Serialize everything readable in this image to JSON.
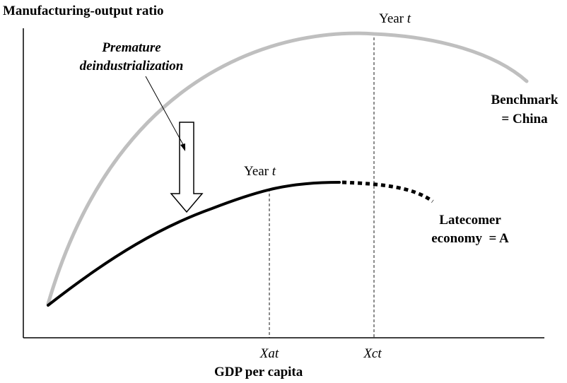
{
  "diagram": {
    "y_axis_title": "Manufacturing-output ratio",
    "x_axis_title": "GDP per capita",
    "annotation": {
      "line1": "Premature",
      "line2": "deindustrialization"
    },
    "benchmark": {
      "line1": "Benchmark",
      "line2": "= China",
      "year_label_prefix": "Year",
      "year_label_var": "t",
      "x_tick_label": "Xct",
      "color": "#bfbfbf"
    },
    "latecomer": {
      "line1": "Latecomer",
      "line2": "economy  = A",
      "year_label_prefix": "Year",
      "year_label_var": "t",
      "x_tick_label": "Xat",
      "color": "#000000"
    }
  }
}
